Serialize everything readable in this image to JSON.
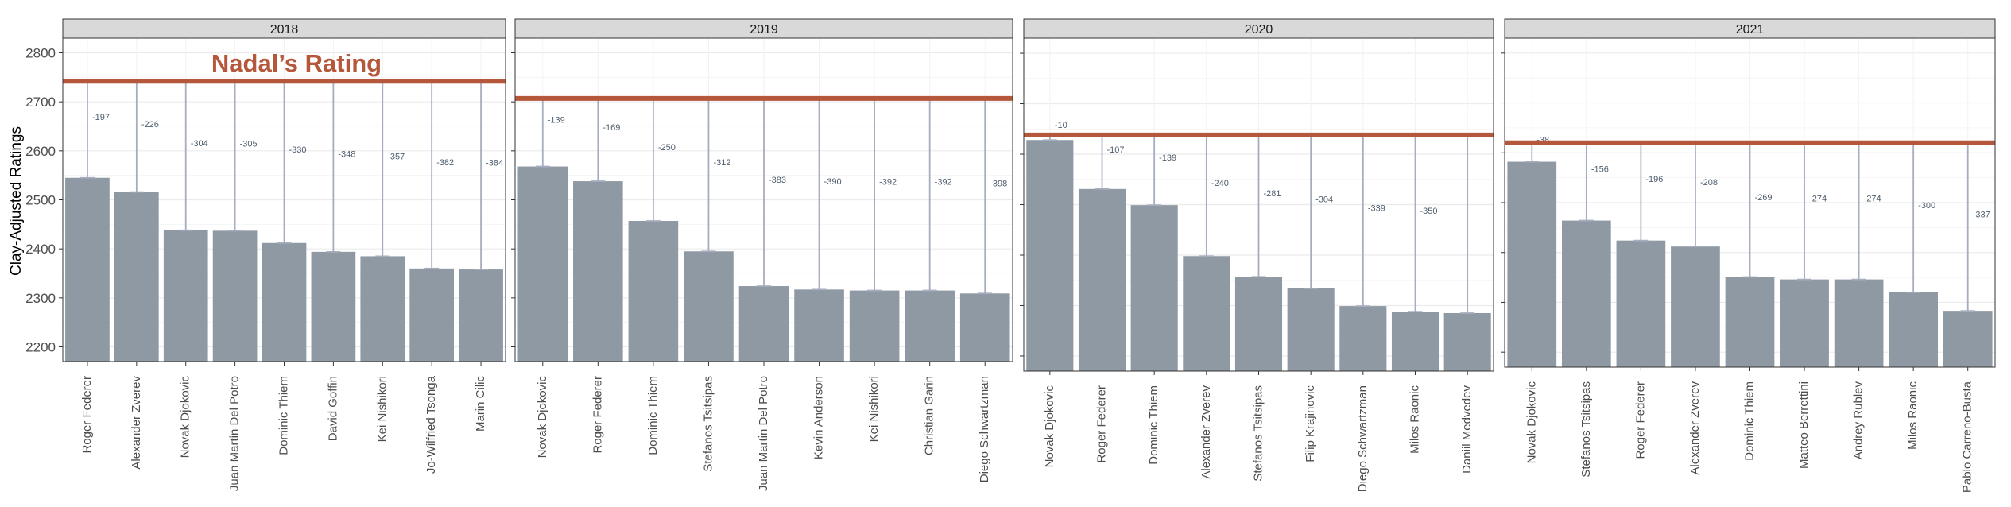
{
  "chart_data": {
    "type": "bar",
    "ylabel": "Clay-Adjusted Ratings",
    "annotation": "Nadal’s Rating",
    "ylim": [
      2170,
      2830
    ],
    "yticks": [
      2200,
      2300,
      2400,
      2500,
      2600,
      2700,
      2800
    ],
    "grid": true,
    "colors": {
      "bar": "#8f99a3",
      "nadal_line": "#b5573a",
      "gap_line": "#a6adbf",
      "strip": "#d9d9d9"
    },
    "panels": [
      {
        "strip": "2018",
        "nadal_rating": 2742,
        "categories": [
          "Roger Federer",
          "Alexander Zverev",
          "Novak Djokovic",
          "Juan Martin Del Potro",
          "Dominic Thiem",
          "David Goffin",
          "Kei Nishikori",
          "Jo-Wilfried Tsonga",
          "Marin Cilic"
        ],
        "values": [
          2545,
          2516,
          2438,
          2437,
          2412,
          2394,
          2385,
          2360,
          2358
        ],
        "gap_labels": [
          "-197",
          "-226",
          "-304",
          "-305",
          "-330",
          "-348",
          "-357",
          "-382",
          "-384"
        ]
      },
      {
        "strip": "2019",
        "nadal_rating": 2707,
        "categories": [
          "Novak Djokovic",
          "Roger Federer",
          "Dominic Thiem",
          "Stefanos Tsitsipas",
          "Juan Martin Del Potro",
          "Kevin Anderson",
          "Kei Nishikori",
          "Christian Garin",
          "Diego Schwartzman"
        ],
        "values": [
          2568,
          2538,
          2457,
          2395,
          2324,
          2317,
          2315,
          2315,
          2309
        ],
        "gap_labels": [
          "-139",
          "-169",
          "-250",
          "-312",
          "-383",
          "-390",
          "-392",
          "-392",
          "-398"
        ]
      },
      {
        "strip": "2020",
        "nadal_rating": 2638,
        "categories": [
          "Novak Djokovic",
          "Roger Federer",
          "Dominic Thiem",
          "Alexander Zverev",
          "Stefanos Tsitsipas",
          "Filip Krajinovic",
          "Diego Schwartzman",
          "Milos Raonic",
          "Daniil Medvedev"
        ],
        "values": [
          2628,
          2531,
          2499,
          2398,
          2357,
          2334,
          2299,
          2288,
          2285
        ],
        "gap_labels": [
          "-10",
          "-107",
          "-139",
          "-240",
          "-281",
          "-304",
          "-339",
          "-350",
          ""
        ]
      },
      {
        "strip": "2021",
        "nadal_rating": 2620,
        "categories": [
          "Novak Djokovic",
          "Stefanos Tsitsipas",
          "Roger Federer",
          "Alexander Zverev",
          "Dominic Thiem",
          "Matteo Berrettini",
          "Andrey Rublev",
          "Milos Raonic",
          "Pablo Carreno-Busta"
        ],
        "values": [
          2582,
          2464,
          2424,
          2412,
          2351,
          2346,
          2346,
          2320,
          2283
        ],
        "gap_labels": [
          "-38",
          "-156",
          "-196",
          "-208",
          "-269",
          "-274",
          "-274",
          "-300",
          "-337"
        ]
      }
    ]
  }
}
